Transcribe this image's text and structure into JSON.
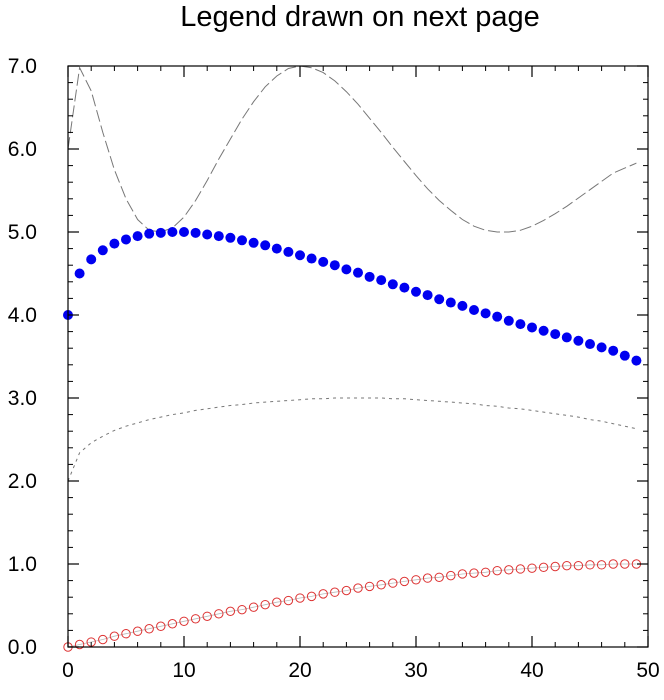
{
  "chart_data": {
    "type": "line",
    "title": "Legend drawn on next page",
    "xlabel": "",
    "ylabel": "",
    "xlim": [
      0,
      50
    ],
    "ylim": [
      0,
      7
    ],
    "x_ticks": [
      0,
      10,
      20,
      30,
      40,
      50
    ],
    "x_tick_labels": [
      "0",
      "10",
      "20",
      "30",
      "40",
      "50"
    ],
    "y_ticks": [
      0,
      1,
      2,
      3,
      4,
      5,
      6,
      7
    ],
    "y_tick_labels": [
      "0.0",
      "1.0",
      "2.0",
      "3.0",
      "4.0",
      "5.0",
      "6.0",
      "7.0"
    ],
    "grid": false,
    "x": [
      0,
      1,
      2,
      3,
      4,
      5,
      6,
      7,
      8,
      9,
      10,
      11,
      12,
      13,
      14,
      15,
      16,
      17,
      18,
      19,
      20,
      21,
      22,
      23,
      24,
      25,
      26,
      27,
      28,
      29,
      30,
      31,
      32,
      33,
      34,
      35,
      36,
      37,
      38,
      39,
      40,
      41,
      42,
      43,
      44,
      45,
      46,
      47,
      48,
      49
    ],
    "series": [
      {
        "style": "dashed-line",
        "color": "#777777",
        "values": [
          6.0,
          6.98,
          6.7,
          6.2,
          5.75,
          5.4,
          5.15,
          5.02,
          5.0,
          5.05,
          5.18,
          5.38,
          5.62,
          5.88,
          6.12,
          6.36,
          6.57,
          6.75,
          6.88,
          6.97,
          7.0,
          6.98,
          6.92,
          6.82,
          6.69,
          6.54,
          6.37,
          6.2,
          6.02,
          5.85,
          5.68,
          5.52,
          5.38,
          5.26,
          5.15,
          5.07,
          5.02,
          5.0,
          5.0,
          5.02,
          5.07,
          5.14,
          5.22,
          5.31,
          5.41,
          5.51,
          5.61,
          5.71,
          5.77,
          5.83
        ]
      },
      {
        "style": "filled-markers",
        "color": "#0000f0",
        "values": [
          4.0,
          4.5,
          4.67,
          4.78,
          4.86,
          4.91,
          4.95,
          4.98,
          4.99,
          5.0,
          5.0,
          4.99,
          4.97,
          4.95,
          4.93,
          4.9,
          4.87,
          4.84,
          4.8,
          4.76,
          4.72,
          4.68,
          4.64,
          4.6,
          4.55,
          4.51,
          4.46,
          4.42,
          4.37,
          4.33,
          4.28,
          4.24,
          4.19,
          4.15,
          4.11,
          4.06,
          4.02,
          3.98,
          3.93,
          3.89,
          3.85,
          3.81,
          3.77,
          3.73,
          3.69,
          3.65,
          3.61,
          3.57,
          3.51,
          3.45
        ]
      },
      {
        "style": "dotted-line",
        "color": "#777777",
        "values": [
          2.0,
          2.34,
          2.46,
          2.54,
          2.61,
          2.66,
          2.7,
          2.74,
          2.77,
          2.8,
          2.82,
          2.85,
          2.87,
          2.89,
          2.91,
          2.92,
          2.94,
          2.95,
          2.96,
          2.97,
          2.98,
          2.99,
          2.99,
          3.0,
          3.0,
          3.0,
          3.0,
          3.0,
          2.99,
          2.99,
          2.98,
          2.97,
          2.96,
          2.95,
          2.94,
          2.93,
          2.91,
          2.9,
          2.88,
          2.87,
          2.85,
          2.83,
          2.81,
          2.79,
          2.77,
          2.74,
          2.72,
          2.69,
          2.66,
          2.63
        ]
      },
      {
        "style": "hollow-markers",
        "color": "#dd3333",
        "values": [
          0.0,
          0.03,
          0.06,
          0.09,
          0.13,
          0.16,
          0.19,
          0.22,
          0.25,
          0.28,
          0.31,
          0.34,
          0.37,
          0.4,
          0.43,
          0.45,
          0.48,
          0.51,
          0.54,
          0.56,
          0.59,
          0.61,
          0.64,
          0.66,
          0.68,
          0.71,
          0.73,
          0.75,
          0.77,
          0.79,
          0.81,
          0.83,
          0.84,
          0.86,
          0.88,
          0.89,
          0.9,
          0.92,
          0.93,
          0.94,
          0.95,
          0.96,
          0.97,
          0.98,
          0.98,
          0.99,
          0.99,
          1.0,
          1.0,
          1.0
        ]
      }
    ]
  }
}
